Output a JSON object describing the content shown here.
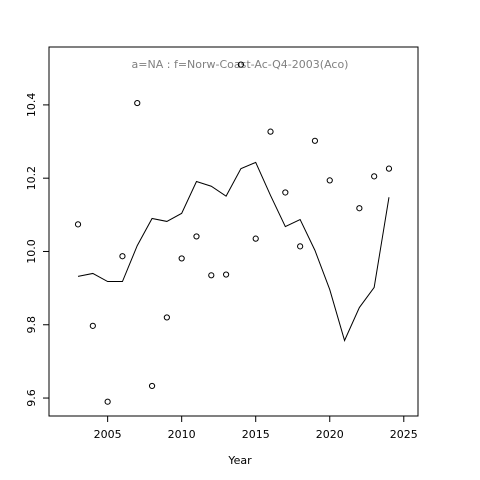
{
  "chart_data": {
    "type": "scatter",
    "title": "a=NA  :  f=Norw-Coast-Ac-Q4-2003(Aco)",
    "x_label": "Year",
    "x": [
      2003,
      2004,
      2005,
      2006,
      2007,
      2008,
      2009,
      2010,
      2011,
      2012,
      2013,
      2014,
      2015,
      2016,
      2017,
      2018,
      2019,
      2020,
      2021,
      2022,
      2023,
      2024
    ],
    "series": [
      {
        "style": "points",
        "color": "#000000",
        "values": [
          10.074,
          9.797,
          9.59,
          9.987,
          10.405,
          9.633,
          9.82,
          9.981,
          10.041,
          9.935,
          9.937,
          10.51,
          10.035,
          10.327,
          10.161,
          10.014,
          10.302,
          10.194,
          null,
          10.118,
          10.205,
          10.226
        ]
      },
      {
        "style": "line",
        "color": "#000000",
        "values": [
          9.932,
          9.94,
          9.918,
          9.918,
          10.016,
          10.09,
          10.082,
          10.104,
          10.191,
          10.178,
          10.151,
          10.226,
          10.243,
          10.153,
          10.068,
          10.087,
          10.003,
          9.896,
          9.757,
          9.847,
          9.902,
          10.148
        ]
      }
    ],
    "xlim": [
      2001.04,
      2025.96
    ],
    "xticks": [
      2005,
      2010,
      2015,
      2020,
      2025
    ],
    "ylim": [
      9.551,
      10.558
    ],
    "yticks": [
      {
        "value": 9.6,
        "label": "9.6"
      },
      {
        "value": 9.8,
        "label": "9.8"
      },
      {
        "value": 10.0,
        "label": "10.0"
      },
      {
        "value": 10.2,
        "label": "10.2"
      },
      {
        "value": 10.4,
        "label": "10.4"
      }
    ],
    "title_color": "#808080"
  }
}
